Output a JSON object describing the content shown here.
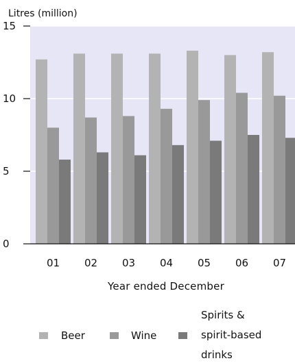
{
  "chart_data": {
    "type": "bar",
    "y_unit_label": "Litres (million)",
    "xlabel": "Year ended December",
    "ylabel": "",
    "categories": [
      "01",
      "02",
      "03",
      "04",
      "05",
      "06",
      "07"
    ],
    "y_ticks": [
      0,
      5,
      10,
      15
    ],
    "ylim": [
      0,
      15
    ],
    "grid": true,
    "legend_position": "bottom",
    "background_color": "#e6e6f7",
    "series": [
      {
        "name": "Beer",
        "color": "#b3b3b3",
        "values": [
          12.7,
          13.1,
          13.1,
          13.1,
          13.3,
          13.0,
          13.2
        ]
      },
      {
        "name": "Wine",
        "color": "#999999",
        "values": [
          8.0,
          8.7,
          8.8,
          9.3,
          9.9,
          10.4,
          10.2
        ]
      },
      {
        "name": "Spirits & spirit-based drinks",
        "legend_lines": [
          "Spirits &",
          "spirit-based",
          "drinks"
        ],
        "color": "#7a7a7a",
        "values": [
          5.8,
          6.3,
          6.1,
          6.8,
          7.1,
          7.5,
          7.3
        ]
      }
    ]
  }
}
